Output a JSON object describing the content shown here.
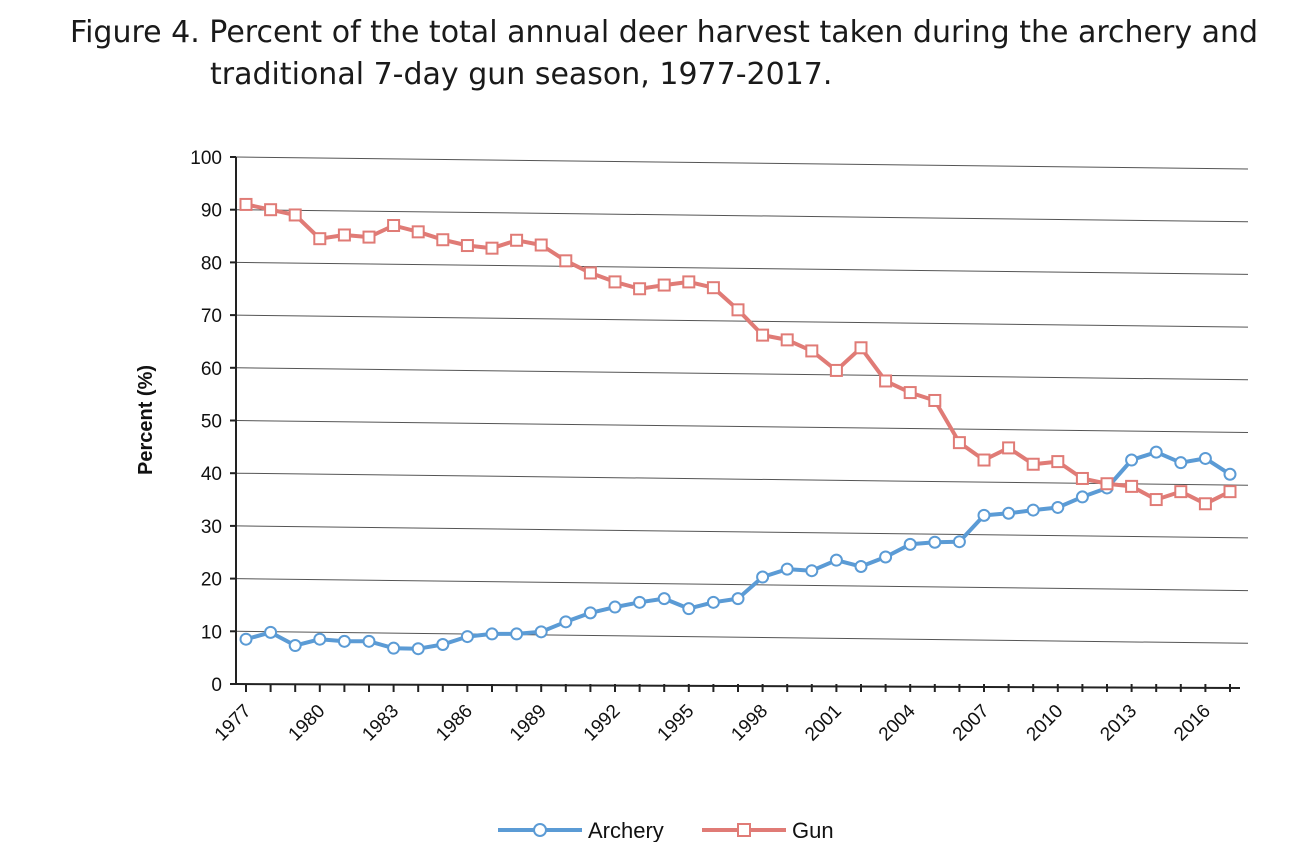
{
  "figure": {
    "title_line1": "Figure 4. Percent of the total annual deer harvest taken during the archery and",
    "title_line2": "traditional 7-day gun season, 1977-2017."
  },
  "chart_data": {
    "type": "line",
    "title": "Figure 4. Percent of the total annual deer harvest taken during the archery and traditional 7-day gun season, 1977-2017.",
    "xlabel": "",
    "ylabel": "Percent (%)",
    "ylim": [
      0,
      100
    ],
    "yticks": [
      0,
      10,
      20,
      30,
      40,
      50,
      60,
      70,
      80,
      90,
      100
    ],
    "xlim": [
      1977,
      2017
    ],
    "xtick_labels": [
      1977,
      1980,
      1983,
      1986,
      1989,
      1992,
      1995,
      1998,
      2001,
      2004,
      2007,
      2010,
      2013,
      2016
    ],
    "grid": true,
    "legend_position": "bottom",
    "x": [
      1977,
      1978,
      1979,
      1980,
      1981,
      1982,
      1983,
      1984,
      1985,
      1986,
      1987,
      1988,
      1989,
      1990,
      1991,
      1992,
      1993,
      1994,
      1995,
      1996,
      1997,
      1998,
      1999,
      2000,
      2001,
      2002,
      2003,
      2004,
      2005,
      2006,
      2007,
      2008,
      2009,
      2010,
      2011,
      2012,
      2013,
      2014,
      2015,
      2016,
      2017
    ],
    "series": [
      {
        "name": "Archery",
        "color": "#5b9bd5",
        "marker": "circle",
        "values": [
          8.5,
          9.8,
          7.3,
          8.5,
          8.1,
          8.1,
          6.8,
          6.7,
          7.5,
          9.0,
          9.5,
          9.5,
          9.9,
          11.8,
          13.5,
          14.6,
          15.5,
          16.2,
          14.3,
          15.5,
          16.2,
          20.3,
          21.8,
          21.5,
          23.5,
          22.3,
          24.1,
          26.5,
          26.9,
          27.0,
          32.0,
          32.4,
          33.0,
          33.5,
          35.5,
          37.2,
          42.5,
          44.0,
          42.0,
          42.8,
          39.8
        ]
      },
      {
        "name": "Gun",
        "color": "#e07b76",
        "marker": "square",
        "values": [
          91.0,
          90.0,
          89.0,
          84.5,
          85.2,
          84.8,
          87.0,
          85.8,
          84.3,
          83.2,
          82.7,
          84.2,
          83.3,
          80.3,
          78.0,
          76.3,
          75.0,
          75.7,
          76.3,
          75.2,
          71.0,
          66.2,
          65.3,
          63.2,
          59.5,
          63.8,
          57.5,
          55.3,
          53.8,
          45.8,
          42.5,
          44.8,
          41.7,
          42.2,
          39.0,
          38.0,
          37.5,
          35.0,
          36.5,
          34.2,
          36.5
        ]
      }
    ]
  }
}
